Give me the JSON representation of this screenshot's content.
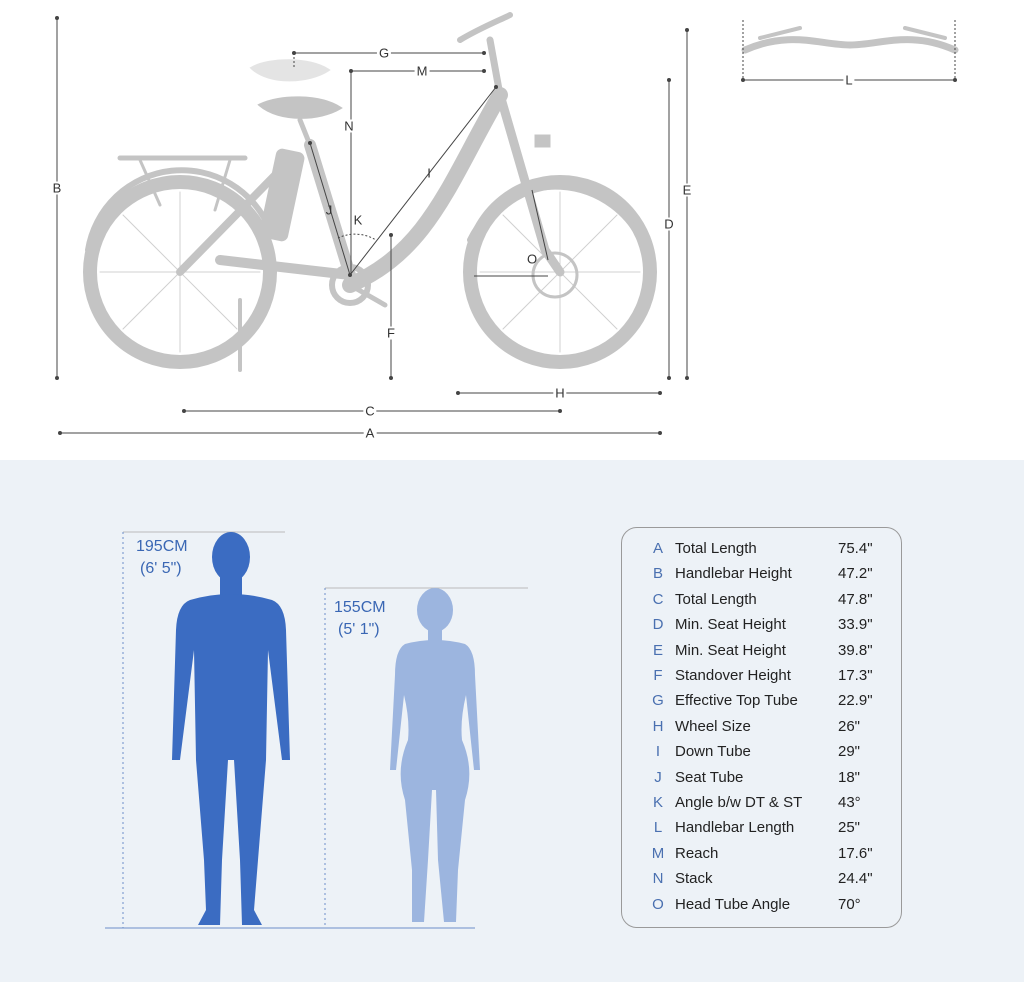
{
  "diagram": {
    "dimension_labels": [
      "A",
      "B",
      "C",
      "D",
      "E",
      "F",
      "G",
      "H",
      "I",
      "J",
      "K",
      "L",
      "M",
      "N",
      "O"
    ],
    "colors": {
      "bike": "#c4c4c4",
      "dim_line": "#444444",
      "man": "#3b6cc2",
      "woman": "#9cb5df",
      "accent": "#4a70b0",
      "panel_bg": "#edf2f7"
    }
  },
  "heights": {
    "man": {
      "cm": "195CM",
      "ft": "(6' 5\")"
    },
    "woman": {
      "cm": "155CM",
      "ft": "(5' 1\")"
    }
  },
  "specs": [
    {
      "letter": "A",
      "label": "Total Length",
      "value": "75.4\""
    },
    {
      "letter": "B",
      "label": "Handlebar Height",
      "value": "47.2\""
    },
    {
      "letter": "C",
      "label": "Total Length",
      "value": "47.8\""
    },
    {
      "letter": "D",
      "label": "Min. Seat Height",
      "value": "33.9\""
    },
    {
      "letter": "E",
      "label": "Min. Seat Height",
      "value": "39.8\""
    },
    {
      "letter": "F",
      "label": "Standover Height",
      "value": "17.3\""
    },
    {
      "letter": "G",
      "label": "Effective Top Tube",
      "value": "22.9\""
    },
    {
      "letter": "H",
      "label": "Wheel Size",
      "value": "26\""
    },
    {
      "letter": "I",
      "label": "Down Tube",
      "value": "29\""
    },
    {
      "letter": "J",
      "label": "Seat Tube",
      "value": "18\""
    },
    {
      "letter": "K",
      "label": "Angle b/w DT & ST",
      "value": "43°"
    },
    {
      "letter": "L",
      "label": "Handlebar Length",
      "value": "25\""
    },
    {
      "letter": "M",
      "label": "Reach",
      "value": "17.6\""
    },
    {
      "letter": "N",
      "label": "Stack",
      "value": "24.4\""
    },
    {
      "letter": "O",
      "label": "Head Tube Angle",
      "value": "70°"
    }
  ]
}
